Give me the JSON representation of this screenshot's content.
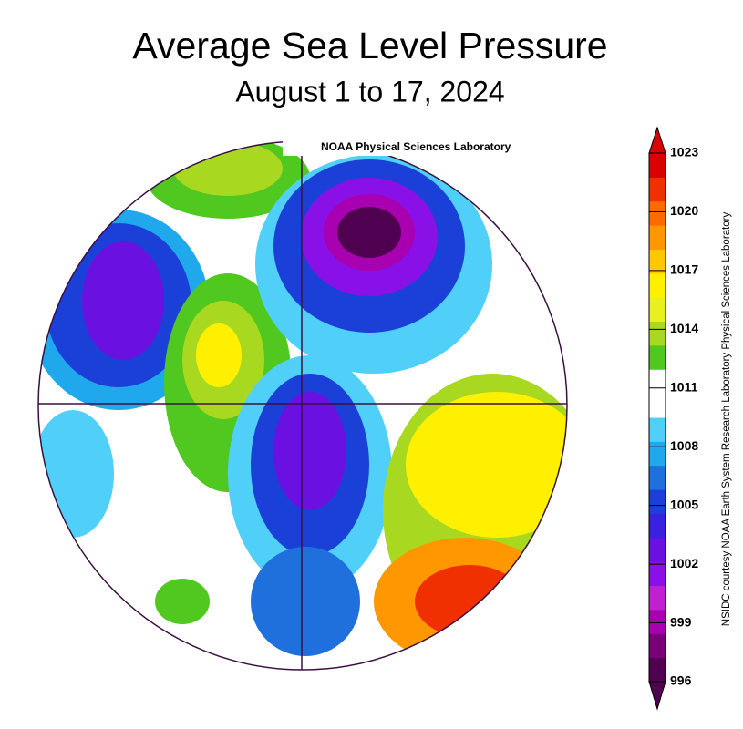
{
  "header": {
    "title": "Average Sea Level Pressure",
    "subtitle": "August 1 to 17, 2024"
  },
  "map": {
    "watermark": "NOAA Physical Sciences Laboratory"
  },
  "colorbar": {
    "ticks": [
      996,
      999,
      1002,
      1005,
      1008,
      1011,
      1014,
      1017,
      1020,
      1023
    ],
    "colors": [
      "#500050",
      "#7a007a",
      "#a800b0",
      "#c020d0",
      "#8a10e8",
      "#6a10e0",
      "#3a20e0",
      "#1a40d8",
      "#1f70dc",
      "#20a8ec",
      "#50d0f8",
      "#ffffff",
      "#ffffff",
      "#50c820",
      "#a8d820",
      "#e8f020",
      "#fff000",
      "#ffc800",
      "#ff9800",
      "#ff6a00",
      "#f03000",
      "#d80000"
    ],
    "top_color": "#d80000",
    "bottom_color": "#500050"
  },
  "credit": "NSIDC courtesy NOAA Earth System Research Laboratory Physical Sciences Laboratory"
}
